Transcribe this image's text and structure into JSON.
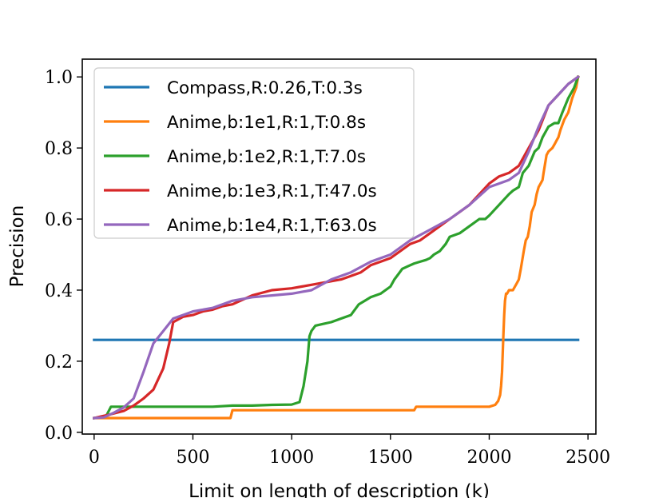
{
  "chart_data": {
    "type": "line",
    "title": "",
    "xlabel": "Limit on length of description (k)",
    "ylabel": "Precision",
    "xlim": [
      -60,
      2540
    ],
    "ylim": [
      -0.005,
      1.05
    ],
    "xticks": [
      0,
      500,
      1000,
      1500,
      2000,
      2500
    ],
    "xtick_labels": [
      "0",
      "500",
      "1000",
      "1500",
      "2000",
      "2500"
    ],
    "yticks": [
      0.0,
      0.2,
      0.4,
      0.6,
      0.8,
      1.0
    ],
    "ytick_labels": [
      "0.0",
      "0.2",
      "0.4",
      "0.6",
      "0.8",
      "1.0"
    ],
    "grid": false,
    "legend_position": "top-left",
    "series": [
      {
        "name": "Compass,R:0.26,T:0.3s",
        "color": "#1f77b4",
        "x": [
          0,
          2450
        ],
        "y": [
          0.26,
          0.26
        ]
      },
      {
        "name": "Anime,b:1e1,R:1,T:0.8s",
        "color": "#ff7f0e",
        "x": [
          0,
          690,
          700,
          1620,
          1630,
          2000,
          2030,
          2045,
          2055,
          2060,
          2065,
          2068,
          2072,
          2076,
          2080,
          2085,
          2090,
          2100,
          2120,
          2140,
          2150,
          2160,
          2175,
          2185,
          2195,
          2205,
          2215,
          2230,
          2240,
          2250,
          2260,
          2270,
          2275,
          2290,
          2300,
          2320,
          2330,
          2340,
          2350,
          2360,
          2380,
          2400,
          2420,
          2440,
          2450
        ],
        "y": [
          0.04,
          0.04,
          0.062,
          0.062,
          0.072,
          0.072,
          0.077,
          0.088,
          0.105,
          0.13,
          0.17,
          0.22,
          0.28,
          0.33,
          0.37,
          0.39,
          0.39,
          0.4,
          0.4,
          0.42,
          0.43,
          0.46,
          0.51,
          0.54,
          0.55,
          0.58,
          0.62,
          0.64,
          0.67,
          0.69,
          0.7,
          0.71,
          0.73,
          0.78,
          0.79,
          0.8,
          0.81,
          0.82,
          0.83,
          0.85,
          0.88,
          0.9,
          0.94,
          0.97,
          1.0
        ]
      },
      {
        "name": "Anime,b:1e2,R:1,T:7.0s",
        "color": "#2ca02c",
        "x": [
          0,
          60,
          85,
          200,
          400,
          600,
          700,
          800,
          900,
          1000,
          1040,
          1060,
          1080,
          1090,
          1100,
          1120,
          1160,
          1200,
          1250,
          1300,
          1340,
          1370,
          1400,
          1450,
          1500,
          1520,
          1540,
          1560,
          1600,
          1620,
          1650,
          1680,
          1700,
          1720,
          1750,
          1780,
          1800,
          1850,
          1900,
          1950,
          1980,
          2000,
          2050,
          2100,
          2120,
          2150,
          2170,
          2200,
          2230,
          2250,
          2270,
          2300,
          2330,
          2350,
          2370,
          2400,
          2430,
          2450
        ],
        "y": [
          0.04,
          0.045,
          0.072,
          0.072,
          0.072,
          0.072,
          0.075,
          0.075,
          0.077,
          0.078,
          0.085,
          0.13,
          0.2,
          0.27,
          0.285,
          0.3,
          0.305,
          0.31,
          0.32,
          0.33,
          0.36,
          0.37,
          0.38,
          0.39,
          0.41,
          0.43,
          0.445,
          0.46,
          0.47,
          0.475,
          0.48,
          0.485,
          0.49,
          0.5,
          0.51,
          0.53,
          0.55,
          0.56,
          0.58,
          0.6,
          0.6,
          0.61,
          0.64,
          0.67,
          0.68,
          0.69,
          0.73,
          0.75,
          0.79,
          0.8,
          0.83,
          0.86,
          0.87,
          0.87,
          0.9,
          0.94,
          0.97,
          1.0
        ]
      },
      {
        "name": "Anime,b:1e3,R:1,T:47.0s",
        "color": "#d62728",
        "x": [
          0,
          80,
          150,
          200,
          250,
          300,
          350,
          380,
          400,
          450,
          500,
          550,
          600,
          650,
          700,
          800,
          900,
          1000,
          1050,
          1100,
          1150,
          1200,
          1250,
          1300,
          1350,
          1400,
          1450,
          1500,
          1550,
          1600,
          1650,
          1700,
          1750,
          1800,
          1850,
          1900,
          1950,
          2000,
          2050,
          2100,
          2150,
          2200,
          2250,
          2300,
          2350,
          2400,
          2450
        ],
        "y": [
          0.04,
          0.05,
          0.06,
          0.075,
          0.095,
          0.12,
          0.18,
          0.25,
          0.31,
          0.325,
          0.33,
          0.34,
          0.345,
          0.355,
          0.36,
          0.385,
          0.4,
          0.405,
          0.41,
          0.415,
          0.42,
          0.425,
          0.43,
          0.44,
          0.45,
          0.47,
          0.48,
          0.49,
          0.51,
          0.53,
          0.54,
          0.56,
          0.58,
          0.6,
          0.62,
          0.64,
          0.67,
          0.7,
          0.72,
          0.73,
          0.75,
          0.8,
          0.85,
          0.92,
          0.95,
          0.98,
          1.0
        ]
      },
      {
        "name": "Anime,b:1e4,R:1,T:63.0s",
        "color": "#9467bd",
        "x": [
          0,
          50,
          100,
          150,
          200,
          250,
          300,
          350,
          400,
          450,
          500,
          550,
          600,
          650,
          700,
          750,
          800,
          900,
          1000,
          1100,
          1200,
          1300,
          1400,
          1500,
          1600,
          1700,
          1800,
          1900,
          2000,
          2050,
          2100,
          2150,
          2200,
          2250,
          2300,
          2350,
          2400,
          2450
        ],
        "y": [
          0.04,
          0.042,
          0.055,
          0.07,
          0.095,
          0.17,
          0.25,
          0.285,
          0.32,
          0.33,
          0.34,
          0.345,
          0.35,
          0.36,
          0.37,
          0.375,
          0.38,
          0.385,
          0.39,
          0.4,
          0.43,
          0.45,
          0.48,
          0.5,
          0.54,
          0.57,
          0.6,
          0.64,
          0.69,
          0.7,
          0.71,
          0.73,
          0.79,
          0.86,
          0.92,
          0.95,
          0.98,
          1.0
        ]
      }
    ]
  }
}
